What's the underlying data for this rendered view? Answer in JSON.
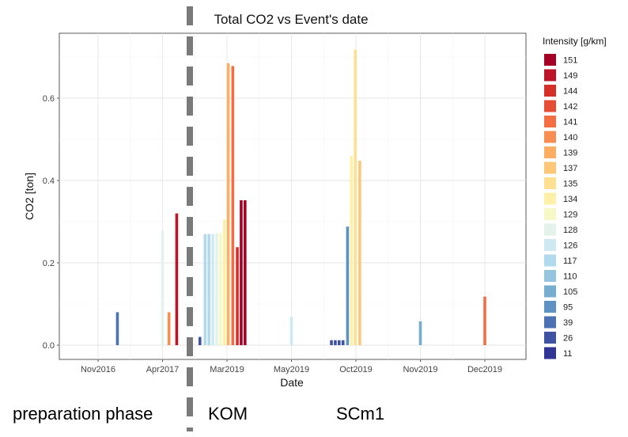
{
  "chart_data": {
    "type": "bar",
    "title": "Total CO2 vs Event's date",
    "xlabel": "Date",
    "ylabel": "CO2 [ton]",
    "ylim": [
      0,
      0.73
    ],
    "y_ticks": [
      0.0,
      0.2,
      0.4,
      0.6
    ],
    "y_tick_labels": [
      "0.0",
      "0.2",
      "0.4",
      "0.6"
    ],
    "x_tick_labels": [
      "Nov2016",
      "Apr2017",
      "Mar2019",
      "May2019",
      "Oct2019",
      "Nov2019",
      "Dec2019"
    ],
    "grid": true,
    "legend": {
      "title": "Intensity [g/km]",
      "position": "right",
      "entries": [
        {
          "label": "151",
          "color": "#a50026"
        },
        {
          "label": "149",
          "color": "#be1427"
        },
        {
          "label": "144",
          "color": "#d62f27"
        },
        {
          "label": "142",
          "color": "#e54e35"
        },
        {
          "label": "141",
          "color": "#f46d43"
        },
        {
          "label": "140",
          "color": "#f88e52"
        },
        {
          "label": "139",
          "color": "#fdae61"
        },
        {
          "label": "137",
          "color": "#fdc776"
        },
        {
          "label": "135",
          "color": "#fee090"
        },
        {
          "label": "134",
          "color": "#fef0a7"
        },
        {
          "label": "129",
          "color": "#f7f9c4"
        },
        {
          "label": "128",
          "color": "#e3f3eb"
        },
        {
          "label": "126",
          "color": "#cfe9f3"
        },
        {
          "label": "117",
          "color": "#b1dbec"
        },
        {
          "label": "110",
          "color": "#93c5de"
        },
        {
          "label": "105",
          "color": "#76aed1"
        },
        {
          "label": "95",
          "color": "#5e92c2"
        },
        {
          "label": "39",
          "color": "#4b73b3"
        },
        {
          "label": "26",
          "color": "#3e53a4"
        },
        {
          "label": "11",
          "color": "#313695"
        }
      ]
    },
    "bars": [
      {
        "pos": 0.3,
        "value": 0.08,
        "intensity": "39"
      },
      {
        "pos": 1.0,
        "value": 0.28,
        "intensity": "128"
      },
      {
        "pos": 1.1,
        "value": 0.08,
        "intensity": "140"
      },
      {
        "pos": 1.22,
        "value": 0.32,
        "intensity": "149"
      },
      {
        "pos": 1.58,
        "value": 0.02,
        "intensity": "26"
      },
      {
        "pos": 1.66,
        "value": 0.27,
        "intensity": "117"
      },
      {
        "pos": 1.72,
        "value": 0.27,
        "intensity": "117"
      },
      {
        "pos": 1.78,
        "value": 0.27,
        "intensity": "126"
      },
      {
        "pos": 1.84,
        "value": 0.272,
        "intensity": "128"
      },
      {
        "pos": 1.9,
        "value": 0.272,
        "intensity": "129"
      },
      {
        "pos": 1.96,
        "value": 0.305,
        "intensity": "134"
      },
      {
        "pos": 2.02,
        "value": 0.685,
        "intensity": "139"
      },
      {
        "pos": 2.09,
        "value": 0.678,
        "intensity": "141"
      },
      {
        "pos": 2.16,
        "value": 0.238,
        "intensity": "144"
      },
      {
        "pos": 2.22,
        "value": 0.352,
        "intensity": "151"
      },
      {
        "pos": 2.28,
        "value": 0.352,
        "intensity": "151"
      },
      {
        "pos": 3.0,
        "value": 0.068,
        "intensity": "126"
      },
      {
        "pos": 3.62,
        "value": 0.012,
        "intensity": "26"
      },
      {
        "pos": 3.68,
        "value": 0.012,
        "intensity": "26"
      },
      {
        "pos": 3.74,
        "value": 0.012,
        "intensity": "26"
      },
      {
        "pos": 3.8,
        "value": 0.012,
        "intensity": "26"
      },
      {
        "pos": 3.87,
        "value": 0.288,
        "intensity": "95"
      },
      {
        "pos": 3.93,
        "value": 0.46,
        "intensity": "134"
      },
      {
        "pos": 3.99,
        "value": 0.718,
        "intensity": "135"
      },
      {
        "pos": 4.06,
        "value": 0.448,
        "intensity": "137"
      },
      {
        "pos": 5.0,
        "value": 0.058,
        "intensity": "105"
      },
      {
        "pos": 6.0,
        "value": 0.118,
        "intensity": "141"
      }
    ]
  },
  "annotations": {
    "phase_left": "preparation phase",
    "kom": "KOM",
    "scm1": "SCm1"
  },
  "divider_color": "#7a7a7a"
}
